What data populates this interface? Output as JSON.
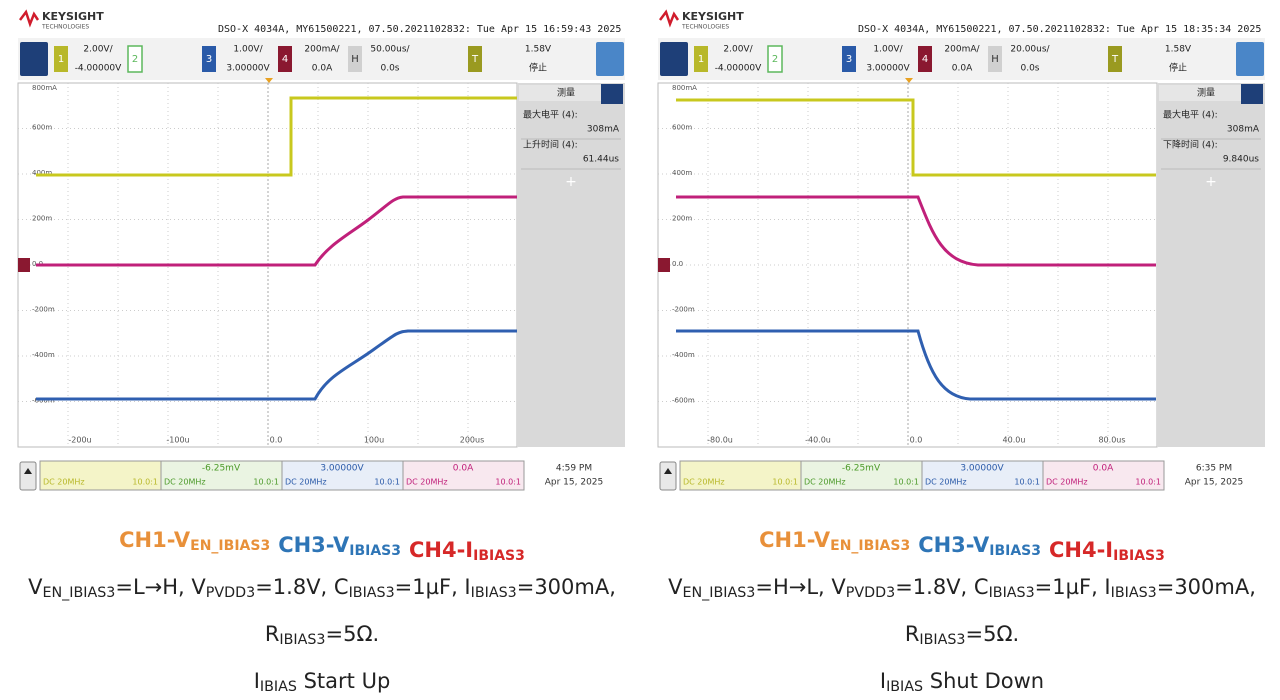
{
  "panels": [
    {
      "brand": "KEYSIGHT",
      "brand_sub": "TECHNOLOGIES",
      "info": "DSO-X 4034A, MY61500221, 07.50.2021102832: Tue Apr 15 16:59:43 2025",
      "channels": [
        {
          "badge": "1",
          "scale": "2.00V/",
          "offset": "-4.00000V",
          "color": "#b8b82a"
        },
        {
          "badge": "2",
          "color": "#5cb85c"
        },
        {
          "badge": "3",
          "scale": "1.00V/",
          "offset": "3.00000V",
          "color": "#2a5aa8"
        },
        {
          "badge": "4",
          "scale": "200mA/",
          "offset": "0.0A",
          "color": "#8a1830"
        },
        {
          "badge": "H",
          "scale": "50.00us/",
          "offset": "0.0s",
          "color": "#d0d0d0"
        },
        {
          "badge": "T",
          "scale": "1.58V",
          "offset": "停止",
          "color": "#9a9a20"
        }
      ],
      "y_labels": [
        "800mA",
        "600m",
        "400m",
        "200m",
        "0.0",
        "-200m",
        "-400m",
        "-600m"
      ],
      "x_labels": [
        "-200u",
        "-100u",
        "0.0",
        "100u",
        "200us"
      ],
      "measure": {
        "title": "测量",
        "items": [
          {
            "label": "最大电平 (4):",
            "value": "308mA"
          },
          {
            "label": "上升时间 (4):",
            "value": "61.44us"
          }
        ]
      },
      "footer": {
        "cells": [
          {
            "coupling": "DC 20MHz",
            "ratio": "10.0:1"
          },
          {
            "value": "-6.25mV",
            "coupling": "DC 20MHz",
            "ratio": "10.0:1"
          },
          {
            "value": "3.00000V",
            "coupling": "DC 20MHz",
            "ratio": "10.0:1"
          },
          {
            "value": "0.0A",
            "coupling": "DC 20MHz",
            "ratio": "10.0:1"
          }
        ],
        "time": "4:59 PM",
        "date": "Apr 15, 2025"
      },
      "caption": {
        "legend": [
          [
            "CH1-V",
            "EN_IBIAS3"
          ],
          [
            "CH3-V",
            "IBIAS3"
          ],
          [
            "CH4-I",
            "IBIAS3"
          ]
        ],
        "legend_colors": [
          "#e8903a",
          "#2e75b6",
          "#d62828"
        ],
        "lines": [
          [
            "V",
            "EN_IBIAS3",
            "=L→H, V",
            "PVDD3",
            "=1.8V, C",
            "IBIAS3",
            "=1µF, I",
            "IBIAS3",
            "=300mA,"
          ],
          [
            "R",
            "IBIAS3",
            "=5Ω."
          ],
          [
            "I",
            "IBIAS",
            " Start Up"
          ]
        ]
      }
    },
    {
      "brand": "KEYSIGHT",
      "brand_sub": "TECHNOLOGIES",
      "info": "DSO-X 4034A, MY61500221, 07.50.2021102832: Tue Apr 15 18:35:34 2025",
      "channels": [
        {
          "badge": "1",
          "scale": "2.00V/",
          "offset": "-4.00000V",
          "color": "#b8b82a"
        },
        {
          "badge": "2",
          "color": "#5cb85c"
        },
        {
          "badge": "3",
          "scale": "1.00V/",
          "offset": "3.00000V",
          "color": "#2a5aa8"
        },
        {
          "badge": "4",
          "scale": "200mA/",
          "offset": "0.0A",
          "color": "#8a1830"
        },
        {
          "badge": "H",
          "scale": "20.00us/",
          "offset": "0.0s",
          "color": "#d0d0d0"
        },
        {
          "badge": "T",
          "scale": "1.58V",
          "offset": "停止",
          "color": "#9a9a20"
        }
      ],
      "y_labels": [
        "800mA",
        "600m",
        "400m",
        "200m",
        "0.0",
        "-200m",
        "-400m",
        "-600m"
      ],
      "x_labels": [
        "-80.0u",
        "-40.0u",
        "0.0",
        "40.0u",
        "80.0us"
      ],
      "measure": {
        "title": "测量",
        "items": [
          {
            "label": "最大电平 (4):",
            "value": "308mA"
          },
          {
            "label": "下降时间 (4):",
            "value": "9.840us"
          }
        ]
      },
      "footer": {
        "cells": [
          {
            "coupling": "DC 20MHz",
            "ratio": "10.0:1"
          },
          {
            "value": "-6.25mV",
            "coupling": "DC 20MHz",
            "ratio": "10.0:1"
          },
          {
            "value": "3.00000V",
            "coupling": "DC 20MHz",
            "ratio": "10.0:1"
          },
          {
            "value": "0.0A",
            "coupling": "DC 20MHz",
            "ratio": "10.0:1"
          }
        ],
        "time": "6:35 PM",
        "date": "Apr 15, 2025"
      },
      "caption": {
        "legend": [
          [
            "CH1-V",
            "EN_IBIAS3"
          ],
          [
            "CH3-V",
            "IBIAS3"
          ],
          [
            "CH4-I",
            "IBIAS3"
          ]
        ],
        "legend_colors": [
          "#e8903a",
          "#2e75b6",
          "#d62828"
        ],
        "lines": [
          [
            "V",
            "EN_IBIAS3",
            "=H→L, V",
            "PVDD3",
            "=1.8V, C",
            "IBIAS3",
            "=1µF, I",
            "IBIAS3",
            "=300mA,"
          ],
          [
            "R",
            "IBIAS3",
            "=5Ω."
          ],
          [
            "I",
            "IBIAS",
            " Shut Down"
          ]
        ]
      }
    }
  ]
}
